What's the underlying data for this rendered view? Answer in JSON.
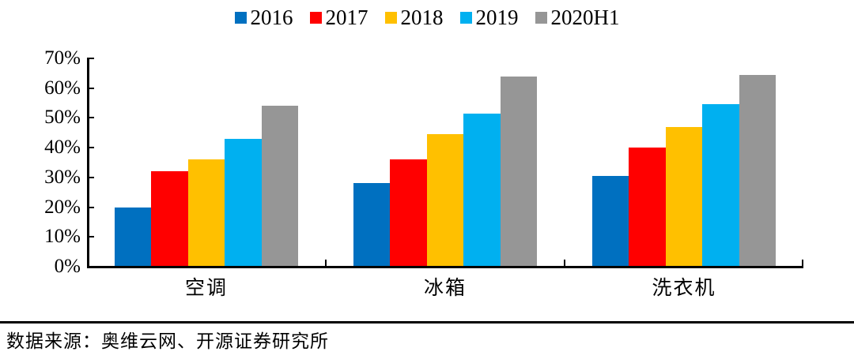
{
  "chart_data": {
    "type": "bar",
    "categories": [
      "空调",
      "冰箱",
      "洗衣机"
    ],
    "series": [
      {
        "name": "2016",
        "color": "#0070C0",
        "values": [
          20,
          28,
          30.5
        ]
      },
      {
        "name": "2017",
        "color": "#FF0000",
        "values": [
          32,
          36,
          40
        ]
      },
      {
        "name": "2018",
        "color": "#FFC000",
        "values": [
          36,
          44.5,
          47
        ]
      },
      {
        "name": "2019",
        "color": "#00B0F0",
        "values": [
          43,
          51.5,
          54.5
        ]
      },
      {
        "name": "2020H1",
        "color": "#969696",
        "values": [
          54,
          64,
          64.5
        ]
      }
    ],
    "title": "",
    "xlabel": "",
    "ylabel": "",
    "ylim": [
      0,
      70
    ],
    "ytick_step": 10,
    "ytick_labels": [
      "0%",
      "10%",
      "20%",
      "30%",
      "40%",
      "50%",
      "60%",
      "70%"
    ],
    "grid": false,
    "legend_position": "top",
    "axis_color": "#000000",
    "text_color": "#000000"
  },
  "footer": {
    "source_text": "数据来源：奥维云网、开源证券研究所"
  }
}
